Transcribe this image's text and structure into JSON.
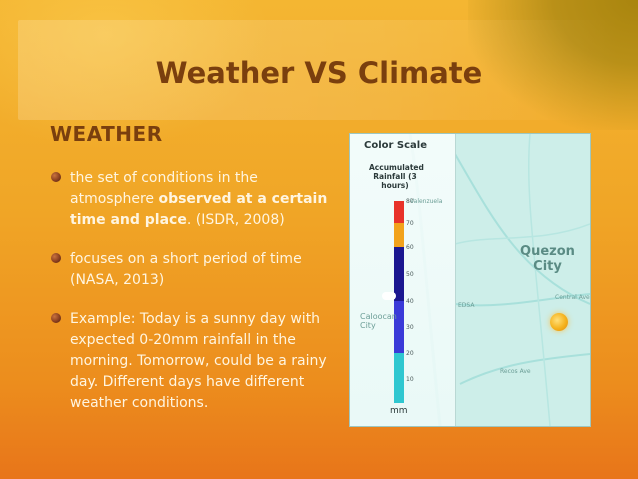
{
  "slide": {
    "title": "Weather VS Climate",
    "heading": "WEATHER",
    "bullets": [
      {
        "before": "the set of conditions in the atmosphere ",
        "bold": "observed at a certain time and place",
        "after": ". (ISDR, 2008)"
      },
      {
        "before": " focuses on a short period of time (NASA, 2013)",
        "bold": "",
        "after": ""
      },
      {
        "before": "Example: Today is a sunny day with expected 0-20mm rainfall in the morning. Tomorrow, could be a rainy day. Different days have different weather conditions.",
        "bold": "",
        "after": ""
      }
    ]
  },
  "map": {
    "scale_title": "Color Scale",
    "scale_subtitle": "Accumulated Rainfall (3 hours)",
    "unit": "mm",
    "ticks": [
      "80",
      "70",
      "60",
      "50",
      "40",
      "30",
      "20",
      "10"
    ],
    "city_label": "Quezon City",
    "other_labels": {
      "valenzuela": "Valenzuela",
      "caloocan": "Caloocan City",
      "central_ave": "Central Ave",
      "edsa": "EDSA",
      "recos_ave": "Recos Ave"
    },
    "colors": {
      "red": "#e8322a",
      "orange": "#f2a21b",
      "navy": "#1b1790",
      "blue": "#3a3ad8",
      "teal": "#2fc7d0"
    }
  }
}
